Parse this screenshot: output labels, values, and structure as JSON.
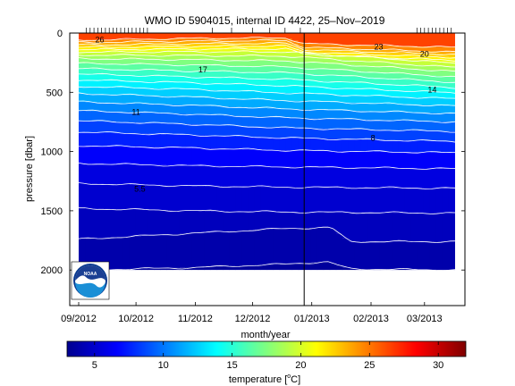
{
  "chart_data": {
    "type": "heatmap",
    "title": "WMO ID 5904015, internal ID 4422, 25–Nov–2019",
    "xlabel": "month/year",
    "ylabel": "pressure [dbar]",
    "x_tick_labels": [
      "09/2012",
      "10/2012",
      "11/2012",
      "12/2012",
      "01/2013",
      "02/2013",
      "03/2013"
    ],
    "y_ticks": [
      0,
      500,
      1000,
      1500,
      2000
    ],
    "y_tick_labels": [
      "0",
      "500",
      "1000",
      "1500",
      "2000"
    ],
    "ylim": [
      2300,
      0
    ],
    "colorbar": {
      "label": "temperature [°C]",
      "label_main": "temperature [",
      "label_sup": "o",
      "label_end": "C]",
      "range": [
        3,
        32
      ],
      "ticks": [
        5,
        10,
        15,
        20,
        25,
        30
      ],
      "tick_labels": [
        "5",
        "10",
        "15",
        "20",
        "25",
        "30"
      ],
      "colormap": "jet"
    },
    "isotherm_labels": [
      {
        "text": "26",
        "x_date": "2012-09-12",
        "pressure": 80
      },
      {
        "text": "17",
        "x_date": "2012-11-05",
        "pressure": 330
      },
      {
        "text": "11",
        "x_date": "2012-10-01",
        "pressure": 690
      },
      {
        "text": "5.5",
        "x_date": "2012-10-03",
        "pressure": 1340
      },
      {
        "text": "23",
        "x_date": "2013-02-05",
        "pressure": 140
      },
      {
        "text": "20",
        "x_date": "2013-03-01",
        "pressure": 200
      },
      {
        "text": "14",
        "x_date": "2013-03-05",
        "pressure": 500
      },
      {
        "text": "8",
        "x_date": "2013-02-02",
        "pressure": 910
      }
    ],
    "isotherms": [
      {
        "t": 25,
        "d": [
          [
            0,
            60
          ],
          [
            0.3,
            45
          ],
          [
            0.55,
            40
          ],
          [
            0.6,
            90
          ],
          [
            1,
            120
          ]
        ]
      },
      {
        "t": 24,
        "d": [
          [
            0,
            80
          ],
          [
            0.3,
            68
          ],
          [
            0.55,
            62
          ],
          [
            0.6,
            120
          ],
          [
            1,
            160
          ]
        ]
      },
      {
        "t": 23,
        "d": [
          [
            0,
            100
          ],
          [
            0.3,
            90
          ],
          [
            0.55,
            85
          ],
          [
            0.6,
            140
          ],
          [
            1,
            180
          ]
        ]
      },
      {
        "t": 22,
        "d": [
          [
            0,
            120
          ],
          [
            0.3,
            112
          ],
          [
            0.55,
            108
          ],
          [
            0.6,
            160
          ],
          [
            1,
            205
          ]
        ]
      },
      {
        "t": 21,
        "d": [
          [
            0,
            140
          ],
          [
            0.3,
            135
          ],
          [
            0.55,
            132
          ],
          [
            0.6,
            180
          ],
          [
            1,
            230
          ]
        ]
      },
      {
        "t": 20,
        "d": [
          [
            0,
            160
          ],
          [
            0.3,
            158
          ],
          [
            0.55,
            158
          ],
          [
            1,
            255
          ]
        ]
      },
      {
        "t": 19,
        "d": [
          [
            0,
            185
          ],
          [
            0.3,
            190
          ],
          [
            0.55,
            195
          ],
          [
            1,
            290
          ]
        ]
      },
      {
        "t": 18,
        "d": [
          [
            0,
            215
          ],
          [
            0.3,
            225
          ],
          [
            0.55,
            235
          ],
          [
            1,
            325
          ]
        ]
      },
      {
        "t": 17,
        "d": [
          [
            0,
            255
          ],
          [
            0.3,
            270
          ],
          [
            0.55,
            285
          ],
          [
            1,
            370
          ]
        ]
      },
      {
        "t": 16,
        "d": [
          [
            0,
            300
          ],
          [
            0.3,
            320
          ],
          [
            0.55,
            335
          ],
          [
            1,
            415
          ]
        ]
      },
      {
        "t": 15,
        "d": [
          [
            0,
            345
          ],
          [
            0.3,
            370
          ],
          [
            0.55,
            390
          ],
          [
            1,
            460
          ]
        ]
      },
      {
        "t": 14,
        "d": [
          [
            0,
            395
          ],
          [
            0.3,
            420
          ],
          [
            0.55,
            445
          ],
          [
            1,
            505
          ]
        ]
      },
      {
        "t": 13,
        "d": [
          [
            0,
            450
          ],
          [
            0.3,
            475
          ],
          [
            0.55,
            505
          ],
          [
            1,
            555
          ]
        ]
      },
      {
        "t": 12,
        "d": [
          [
            0,
            510
          ],
          [
            0.3,
            540
          ],
          [
            0.55,
            570
          ],
          [
            1,
            615
          ]
        ]
      },
      {
        "t": 11,
        "d": [
          [
            0,
            580
          ],
          [
            0.3,
            610
          ],
          [
            0.55,
            640
          ],
          [
            1,
            680
          ]
        ]
      },
      {
        "t": 10,
        "d": [
          [
            0,
            655
          ],
          [
            0.3,
            685
          ],
          [
            0.55,
            715
          ],
          [
            1,
            750
          ]
        ]
      },
      {
        "t": 9,
        "d": [
          [
            0,
            740
          ],
          [
            0.3,
            770
          ],
          [
            0.55,
            800
          ],
          [
            1,
            830
          ]
        ]
      },
      {
        "t": 8,
        "d": [
          [
            0,
            835
          ],
          [
            0.3,
            860
          ],
          [
            0.55,
            885
          ],
          [
            1,
            915
          ]
        ]
      },
      {
        "t": 7,
        "d": [
          [
            0,
            950
          ],
          [
            0.3,
            970
          ],
          [
            0.55,
            990
          ],
          [
            1,
            1010
          ]
        ]
      },
      {
        "t": 6,
        "d": [
          [
            0,
            1100
          ],
          [
            0.3,
            1120
          ],
          [
            0.55,
            1130
          ],
          [
            1,
            1145
          ]
        ]
      },
      {
        "t": 5.5,
        "d": [
          [
            0,
            1270
          ],
          [
            0.3,
            1290
          ],
          [
            0.55,
            1300
          ],
          [
            1,
            1310
          ]
        ]
      },
      {
        "t": 5,
        "d": [
          [
            0,
            1480
          ],
          [
            0.3,
            1500
          ],
          [
            0.55,
            1510
          ],
          [
            1,
            1520
          ]
        ]
      },
      {
        "t": 4.5,
        "d": [
          [
            0,
            1740
          ],
          [
            0.3,
            1690
          ],
          [
            0.55,
            1650
          ],
          [
            0.67,
            1640
          ],
          [
            0.72,
            1760
          ],
          [
            1,
            1760
          ]
        ]
      },
      {
        "t": 4,
        "d": [
          [
            0,
            2000
          ],
          [
            0.3,
            1980
          ],
          [
            0.55,
            1950
          ],
          [
            0.66,
            1930
          ],
          [
            0.72,
            1990
          ],
          [
            1,
            2000
          ]
        ]
      }
    ],
    "profile_dates_top": [
      "2012-09-05",
      "2012-09-07",
      "2012-09-09",
      "2012-09-11",
      "2012-09-13",
      "2012-09-15",
      "2012-09-17",
      "2012-09-19",
      "2012-09-21",
      "2012-09-23",
      "2012-09-25",
      "2012-09-27",
      "2012-09-29",
      "2012-10-01",
      "2012-10-03",
      "2012-10-05",
      "2012-10-07",
      "2012-11-10",
      "2012-11-20",
      "2012-12-01",
      "2012-12-10",
      "2012-12-18",
      "2012-12-26",
      "2013-01-05",
      "2013-02-25",
      "2013-02-27",
      "2013-03-01",
      "2013-03-03",
      "2013-03-05",
      "2013-03-07",
      "2013-03-09",
      "2013-03-11",
      "2013-03-13",
      "2013-03-15"
    ],
    "vertical_marker_date": "2012-12-28",
    "logo": "NOAA"
  }
}
